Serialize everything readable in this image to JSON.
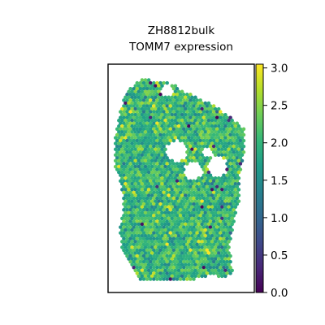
{
  "chart_data": {
    "type": "heatmap",
    "title_line1": "ZH8812bulk",
    "title_line2": "TOMM7 expression",
    "xlabel": "",
    "ylabel": "",
    "axes_ticks": false,
    "grid": false,
    "colormap": "viridis",
    "colorbar": {
      "vmin": 0.0,
      "vmax": 3.05,
      "ticks": [
        0.0,
        0.5,
        1.0,
        1.5,
        2.0,
        2.5,
        3.0
      ],
      "tick_labels": [
        "0.0",
        "0.5",
        "1.0",
        "1.5",
        "2.0",
        "2.5",
        "3.0"
      ],
      "placement": "right"
    },
    "values_summary": {
      "typical_range": [
        1.5,
        2.5
      ],
      "dominant_value": 2.0,
      "low_outliers": "scattered spots near 0.0-0.5, mostly along top edge and left border"
    }
  }
}
